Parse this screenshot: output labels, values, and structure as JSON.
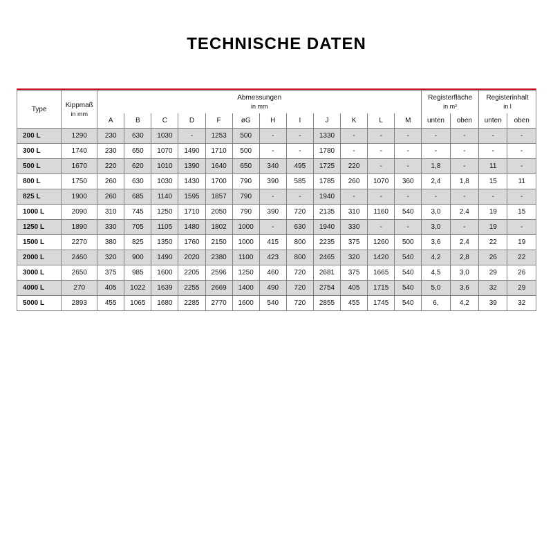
{
  "title": "TECHNISCHE DATEN",
  "colors": {
    "accent": "#c1121f",
    "shade": "#d9d9d9",
    "border": "#808080",
    "text": "#111111",
    "bg": "#ffffff"
  },
  "table": {
    "headers": {
      "type": "Type",
      "kippmass": "Kippmaß",
      "kippmass_unit": "in mm",
      "abmessungen": "Abmessungen",
      "abmessungen_unit": "in mm",
      "registerflaeche": "Registerfläche",
      "registerflaeche_unit": "in m²",
      "registerinhalt": "Registerinhalt",
      "registerinhalt_unit": "in l",
      "dim_cols": [
        "A",
        "B",
        "C",
        "D",
        "F",
        "øG",
        "H",
        "I",
        "J",
        "K",
        "L",
        "M"
      ],
      "unten": "unten",
      "oben": "oben"
    },
    "rows": [
      {
        "type": "200 L",
        "kipp": "1290",
        "dims": [
          "230",
          "630",
          "1030",
          "-",
          "1253",
          "500",
          "-",
          "-",
          "1330",
          "-",
          "-",
          "-"
        ],
        "rf": [
          "-",
          "-"
        ],
        "ri": [
          "-",
          "-"
        ]
      },
      {
        "type": "300 L",
        "kipp": "1740",
        "dims": [
          "230",
          "650",
          "1070",
          "1490",
          "1710",
          "500",
          "-",
          "-",
          "1780",
          "-",
          "-",
          "-"
        ],
        "rf": [
          "-",
          "-"
        ],
        "ri": [
          "-",
          "-"
        ]
      },
      {
        "type": "500 L",
        "kipp": "1670",
        "dims": [
          "220",
          "620",
          "1010",
          "1390",
          "1640",
          "650",
          "340",
          "495",
          "1725",
          "220",
          "-",
          "-"
        ],
        "rf": [
          "1,8",
          "-"
        ],
        "ri": [
          "11",
          "-"
        ]
      },
      {
        "type": "800 L",
        "kipp": "1750",
        "dims": [
          "260",
          "630",
          "1030",
          "1430",
          "1700",
          "790",
          "390",
          "585",
          "1785",
          "260",
          "1070",
          "360"
        ],
        "rf": [
          "2,4",
          "1,8"
        ],
        "ri": [
          "15",
          "11"
        ]
      },
      {
        "type": "825 L",
        "kipp": "1900",
        "dims": [
          "260",
          "685",
          "1140",
          "1595",
          "1857",
          "790",
          "-",
          "-",
          "1940",
          "-",
          "-",
          "-"
        ],
        "rf": [
          "-",
          "-"
        ],
        "ri": [
          "-",
          "-"
        ]
      },
      {
        "type": "1000 L",
        "kipp": "2090",
        "dims": [
          "310",
          "745",
          "1250",
          "1710",
          "2050",
          "790",
          "390",
          "720",
          "2135",
          "310",
          "1160",
          "540"
        ],
        "rf": [
          "3,0",
          "2,4"
        ],
        "ri": [
          "19",
          "15"
        ]
      },
      {
        "type": "1250 L",
        "kipp": "1890",
        "dims": [
          "330",
          "705",
          "1105",
          "1480",
          "1802",
          "1000",
          "-",
          "630",
          "1940",
          "330",
          "-",
          "-"
        ],
        "rf": [
          "3,0",
          "-"
        ],
        "ri": [
          "19",
          "-"
        ]
      },
      {
        "type": "1500 L",
        "kipp": "2270",
        "dims": [
          "380",
          "825",
          "1350",
          "1760",
          "2150",
          "1000",
          "415",
          "800",
          "2235",
          "375",
          "1260",
          "500"
        ],
        "rf": [
          "3,6",
          "2,4"
        ],
        "ri": [
          "22",
          "19"
        ]
      },
      {
        "type": "2000 L",
        "kipp": "2460",
        "dims": [
          "320",
          "900",
          "1490",
          "2020",
          "2380",
          "1100",
          "423",
          "800",
          "2465",
          "320",
          "1420",
          "540"
        ],
        "rf": [
          "4,2",
          "2,8"
        ],
        "ri": [
          "26",
          "22"
        ]
      },
      {
        "type": "3000 L",
        "kipp": "2650",
        "dims": [
          "375",
          "985",
          "1600",
          "2205",
          "2596",
          "1250",
          "460",
          "720",
          "2681",
          "375",
          "1665",
          "540"
        ],
        "rf": [
          "4,5",
          "3,0"
        ],
        "ri": [
          "29",
          "26"
        ]
      },
      {
        "type": "4000 L",
        "kipp": "270",
        "dims": [
          "405",
          "1022",
          "1639",
          "2255",
          "2669",
          "1400",
          "490",
          "720",
          "2754",
          "405",
          "1715",
          "540"
        ],
        "rf": [
          "5,0",
          "3,6"
        ],
        "ri": [
          "32",
          "29"
        ]
      },
      {
        "type": "5000 L",
        "kipp": "2893",
        "dims": [
          "455",
          "1065",
          "1680",
          "2285",
          "2770",
          "1600",
          "540",
          "720",
          "2855",
          "455",
          "1745",
          "540"
        ],
        "rf": [
          "6,",
          "4,2"
        ],
        "ri": [
          "39",
          "32"
        ]
      }
    ]
  }
}
